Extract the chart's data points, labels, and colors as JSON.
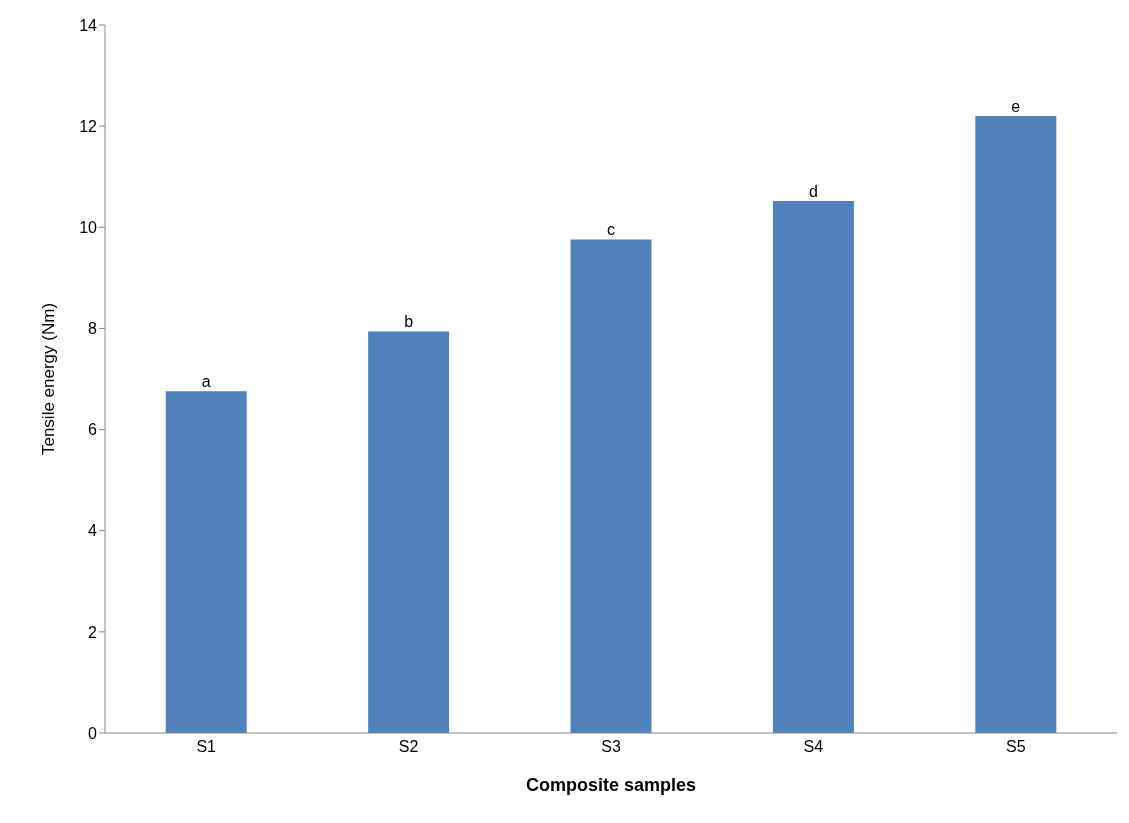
{
  "chart_data": {
    "type": "bar",
    "xlabel": "Composite samples",
    "ylabel": "Tensile energy (Nm)",
    "categories": [
      "S1",
      "S2",
      "S3",
      "S4",
      "S5"
    ],
    "values": [
      6.76,
      7.94,
      9.76,
      10.52,
      12.2
    ],
    "color": "#4f81bd",
    "ylim": [
      0,
      14
    ],
    "yticks": [
      0,
      2,
      4,
      6,
      8,
      10,
      12,
      14
    ],
    "grid": false,
    "annotations": [
      {
        "text": "a",
        "x": "S1",
        "y": 6.76
      },
      {
        "text": "b",
        "x": "S2",
        "y": 7.94
      },
      {
        "text": "c",
        "x": "S3",
        "y": 9.76
      },
      {
        "text": "d",
        "x": "S4",
        "y": 10.52
      },
      {
        "text": "e",
        "x": "S5",
        "y": 12.2
      }
    ]
  }
}
